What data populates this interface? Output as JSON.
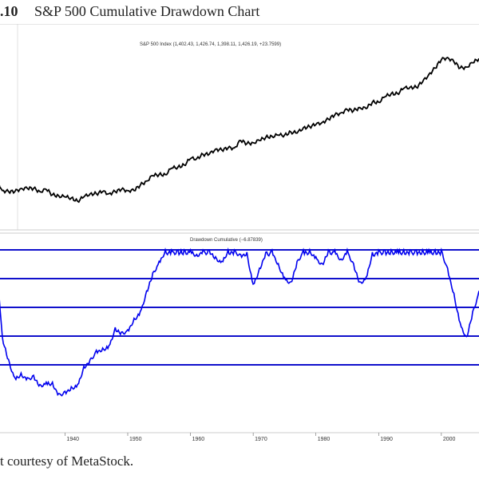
{
  "figure": {
    "number_fragment": ".10",
    "title": "S&P 500 Cumulative Drawdown Chart",
    "caption": "t courtesy of MetaStock."
  },
  "chart_data": [
    {
      "type": "line",
      "panel": "upper",
      "title": "S&P 500 Index (1,402.43, 1,426.74, 1,398.11, 1,426.19, +23.7599)",
      "series": [
        {
          "color": "#000000",
          "x": [
            1929.0,
            1930.0,
            1931.0,
            1932.0,
            1933.0,
            1934.0,
            1935.0,
            1936.0,
            1937.0,
            1938.0,
            1939.0,
            1940.0,
            1941.0,
            1942.0,
            1943.0,
            1944.0,
            1945.0,
            1946.0,
            1947.0,
            1948.0,
            1949.0,
            1950.0,
            1951.0,
            1952.0,
            1953.0,
            1954.0,
            1955.0,
            1956.0,
            1957.0,
            1958.0,
            1959.0,
            1960.0,
            1961.0,
            1962.0,
            1963.0,
            1964.0,
            1965.0,
            1966.0,
            1967.0,
            1968.0,
            1969.0,
            1970.0,
            1971.0,
            1972.0,
            1973.0,
            1974.0,
            1975.0,
            1976.0,
            1977.0,
            1978.0,
            1979.0,
            1980.0,
            1981.0,
            1982.0,
            1983.0,
            1984.0,
            1985.0,
            1986.0,
            1987.0,
            1988.0,
            1989.0,
            1990.0,
            1991.0,
            1992.0,
            1993.0,
            1994.0,
            1995.0,
            1996.0,
            1997.0,
            1998.0,
            1999.0,
            2000.0,
            2001.0,
            2002.0,
            2003.0,
            2004.0,
            2005.0,
            2006.0
          ],
          "y": [
            0.4,
            0.28,
            0.27,
            0.27,
            0.3,
            0.3,
            0.3,
            0.27,
            0.29,
            0.24,
            0.23,
            0.22,
            0.21,
            0.18,
            0.22,
            0.25,
            0.25,
            0.27,
            0.25,
            0.27,
            0.29,
            0.28,
            0.28,
            0.33,
            0.37,
            0.42,
            0.43,
            0.43,
            0.49,
            0.5,
            0.52,
            0.58,
            0.58,
            0.62,
            0.62,
            0.67,
            0.66,
            0.68,
            0.68,
            0.75,
            0.72,
            0.73,
            0.75,
            0.78,
            0.79,
            0.8,
            0.8,
            0.83,
            0.82,
            0.87,
            0.88,
            0.9,
            0.92,
            0.95,
            0.99,
            1.01,
            1.04,
            1.03,
            1.06,
            1.05,
            1.11,
            1.11,
            1.16,
            1.19,
            1.19,
            1.24,
            1.25,
            1.25,
            1.3,
            1.37,
            1.43,
            1.51,
            1.53,
            1.49,
            1.43,
            1.44,
            1.48,
            1.52
          ]
        }
      ]
    },
    {
      "type": "line",
      "panel": "lower",
      "title": "Drawdown Cumulative (−6.87839)",
      "series": [
        {
          "color": "#0000ee",
          "x": [
            1929.0,
            1930.0,
            1931.0,
            1932.0,
            1933.0,
            1934.0,
            1935.0,
            1936.0,
            1937.0,
            1938.0,
            1939.0,
            1940.0,
            1941.0,
            1942.0,
            1943.0,
            1944.0,
            1945.0,
            1946.0,
            1947.0,
            1948.0,
            1949.0,
            1950.0,
            1951.0,
            1952.0,
            1953.0,
            1954.0,
            1955.0,
            1956.0,
            1957.0,
            1958.0,
            1959.0,
            1960.0,
            1961.0,
            1962.0,
            1963.0,
            1964.0,
            1965.0,
            1966.0,
            1967.0,
            1968.0,
            1969.0,
            1970.0,
            1971.0,
            1972.0,
            1973.0,
            1974.0,
            1975.0,
            1976.0,
            1977.0,
            1978.0,
            1979.0,
            1980.0,
            1981.0,
            1982.0,
            1983.0,
            1984.0,
            1985.0,
            1986.0,
            1987.0,
            1988.0,
            1989.0,
            1990.0,
            1991.0,
            1992.0,
            1993.0,
            1994.0,
            1995.0,
            1996.0,
            1997.0,
            1998.0,
            1999.0,
            2000.0,
            2001.0,
            2002.0,
            2003.0,
            2004.0,
            2005.0,
            2006.0
          ],
          "y": [
            0.0,
            -0.38,
            -0.48,
            -0.56,
            -0.54,
            -0.56,
            -0.55,
            -0.59,
            -0.58,
            -0.58,
            -0.63,
            -0.62,
            -0.6,
            -0.59,
            -0.51,
            -0.48,
            -0.44,
            -0.43,
            -0.42,
            -0.34,
            -0.36,
            -0.35,
            -0.3,
            -0.27,
            -0.18,
            -0.1,
            -0.05,
            0.0,
            0.0,
            0.0,
            0.0,
            0.0,
            -0.02,
            0.0,
            0.0,
            -0.03,
            -0.05,
            0.0,
            0.0,
            -0.02,
            -0.01,
            -0.15,
            -0.08,
            -0.01,
            0.0,
            -0.06,
            -0.12,
            -0.14,
            -0.05,
            0.0,
            0.0,
            -0.03,
            -0.06,
            0.0,
            0.0,
            -0.04,
            0.0,
            -0.06,
            -0.14,
            -0.12,
            -0.01,
            0.0,
            0.0,
            0.0,
            0.0,
            0.0,
            0.0,
            0.0,
            0.0,
            0.0,
            0.0,
            0.0,
            -0.08,
            -0.19,
            -0.32,
            -0.38,
            -0.27,
            -0.18
          ]
        }
      ],
      "reference_lines": [
        0.0,
        -0.1,
        -0.2,
        -0.3,
        -0.4
      ]
    }
  ],
  "x_axis": {
    "tick_labels": [
      "1940",
      "1950",
      "1960",
      "1970",
      "1980",
      "1990",
      "2000"
    ],
    "tick_values": [
      1940,
      1950,
      1960,
      1970,
      1980,
      1990,
      2000
    ]
  }
}
